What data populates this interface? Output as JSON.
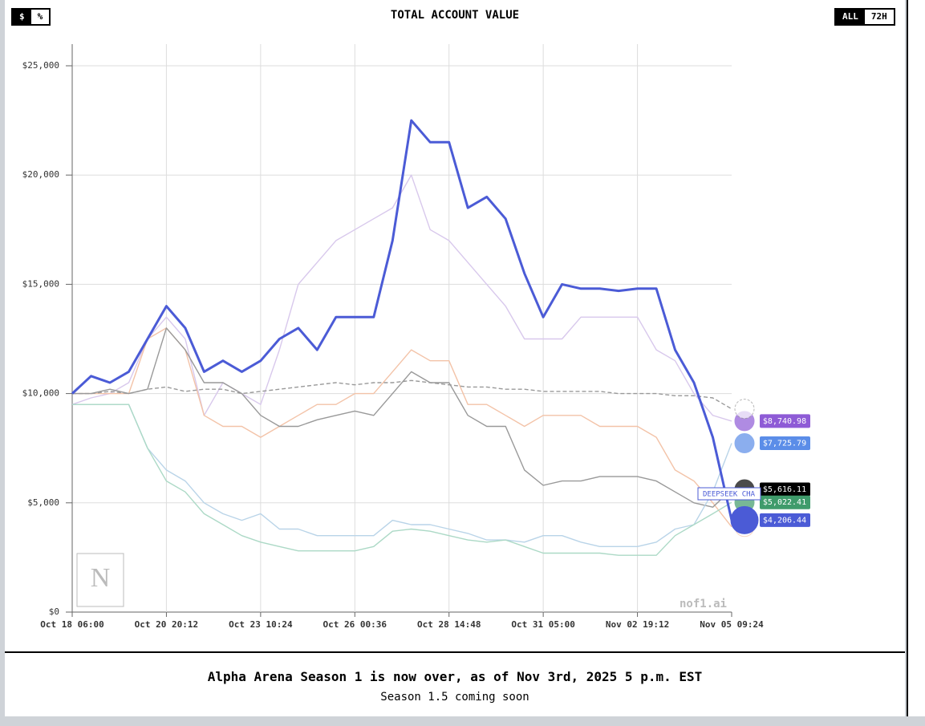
{
  "header": {
    "title": "TOTAL ACCOUNT VALUE",
    "unit_buttons": [
      "$",
      "%"
    ],
    "range_buttons": [
      "ALL",
      "72H"
    ]
  },
  "footer": {
    "headline": "Alpha Arena Season 1 is now over, as of Nov 3rd, 2025 5 p.m. EST",
    "subline": "Season 1.5 coming soon"
  },
  "chart_data": {
    "type": "line",
    "watermark": "nof1.ai",
    "grid": true,
    "categories": [
      "Oct 18 06:00",
      null,
      null,
      null,
      null,
      "Oct 20 20:12",
      null,
      null,
      null,
      null,
      "Oct 23 10:24",
      null,
      null,
      null,
      null,
      "Oct 26 00:36",
      null,
      null,
      null,
      null,
      "Oct 28 14:48",
      null,
      null,
      null,
      null,
      "Oct 31 05:00",
      null,
      null,
      null,
      null,
      "Nov 02 19:12",
      null,
      null,
      null,
      null,
      "Nov 05 09:24"
    ],
    "ylim": [
      0,
      25000
    ],
    "yticks": [
      {
        "value": 0,
        "label": "$0"
      },
      {
        "value": 5000,
        "label": "$5,000"
      },
      {
        "value": 10000,
        "label": "$10,000"
      },
      {
        "value": 15000,
        "label": "$15,000"
      },
      {
        "value": 20000,
        "label": "$20,000"
      },
      {
        "value": 25000,
        "label": "$25,000"
      }
    ],
    "series": [
      {
        "color": "#d8c8ec",
        "values": [
          9500,
          9800,
          10000,
          10500,
          12500,
          13500,
          12500,
          9000,
          10500,
          10000,
          9500,
          12000,
          15000,
          16000,
          17000,
          17500,
          18000,
          18500,
          20000,
          17500,
          17000,
          16000,
          15000,
          14000,
          12500,
          12500,
          12500,
          13500,
          13500,
          13500,
          13500,
          12000,
          11500,
          10000,
          9000,
          8740.98
        ],
        "label_color": "#8e5bd6",
        "value_labels": [
          null,
          null,
          null,
          null,
          null,
          null,
          null,
          null,
          null,
          null,
          null,
          null,
          null,
          null,
          null,
          null,
          null,
          null,
          null,
          null,
          null,
          null,
          null,
          null,
          null,
          null,
          null,
          null,
          null,
          null,
          null,
          null,
          null,
          null,
          null,
          "$8,740.98"
        ]
      },
      {
        "color": "#f3c3a8",
        "values": [
          10000,
          10000,
          10000,
          10000,
          12500,
          13000,
          12000,
          9000,
          8500,
          8500,
          8000,
          8500,
          9000,
          9500,
          9500,
          10000,
          10000,
          11000,
          12000,
          11500,
          11500,
          9500,
          9500,
          9000,
          8500,
          9000,
          9000,
          9000,
          8500,
          8500,
          8500,
          8000,
          6500,
          6000,
          5000,
          3900
        ]
      },
      {
        "color": "#999999",
        "dash": true,
        "values": [
          10000,
          10000,
          10100,
          10000,
          10200,
          10300,
          10100,
          10200,
          10200,
          10000,
          10100,
          10200,
          10300,
          10400,
          10500,
          10400,
          10500,
          10500,
          10600,
          10500,
          10400,
          10300,
          10300,
          10200,
          10200,
          10100,
          10100,
          10100,
          10100,
          10000,
          10000,
          10000,
          9900,
          9900,
          9800,
          9300
        ]
      },
      {
        "color": "#999999",
        "values": [
          10000,
          10000,
          10200,
          10000,
          10200,
          13000,
          12000,
          10500,
          10500,
          10000,
          9000,
          8500,
          8500,
          8800,
          9000,
          9200,
          9000,
          10000,
          11000,
          10500,
          10500,
          9000,
          8500,
          8500,
          6500,
          5800,
          6000,
          6000,
          6200,
          6200,
          6200,
          6000,
          5500,
          5000,
          4800,
          5616.11
        ],
        "label_color": "#000000",
        "value_labels": [
          null,
          null,
          null,
          null,
          null,
          null,
          null,
          null,
          null,
          null,
          null,
          null,
          null,
          null,
          null,
          null,
          null,
          null,
          null,
          null,
          null,
          null,
          null,
          null,
          null,
          null,
          null,
          null,
          null,
          null,
          null,
          null,
          null,
          null,
          null,
          "$5,616.11"
        ]
      },
      {
        "color": "#b9d4e8",
        "values": [
          9500,
          9500,
          9500,
          9500,
          7500,
          6500,
          6000,
          5000,
          4500,
          4200,
          4500,
          3800,
          3800,
          3500,
          3500,
          3500,
          3500,
          4200,
          4000,
          4000,
          3800,
          3600,
          3300,
          3300,
          3200,
          3500,
          3500,
          3200,
          3000,
          3000,
          3000,
          3200,
          3800,
          4000,
          5500,
          7725.79
        ],
        "label_color": "#5b8de8",
        "value_labels": [
          null,
          null,
          null,
          null,
          null,
          null,
          null,
          null,
          null,
          null,
          null,
          null,
          null,
          null,
          null,
          null,
          null,
          null,
          null,
          null,
          null,
          null,
          null,
          null,
          null,
          null,
          null,
          null,
          null,
          null,
          null,
          null,
          null,
          null,
          null,
          "$7,725.79"
        ]
      },
      {
        "color": "#acd9c6",
        "values": [
          9500,
          9500,
          9500,
          9500,
          7500,
          6000,
          5500,
          4500,
          4000,
          3500,
          3200,
          3000,
          2800,
          2800,
          2800,
          2800,
          3000,
          3700,
          3800,
          3700,
          3500,
          3300,
          3200,
          3300,
          3000,
          2700,
          2700,
          2700,
          2700,
          2600,
          2600,
          2600,
          3500,
          4000,
          4500,
          5022.41
        ],
        "label_color": "#3f9b6b",
        "value_labels": [
          null,
          null,
          null,
          null,
          null,
          null,
          null,
          null,
          null,
          null,
          null,
          null,
          null,
          null,
          null,
          null,
          null,
          null,
          null,
          null,
          null,
          null,
          null,
          null,
          null,
          null,
          null,
          null,
          null,
          null,
          null,
          null,
          null,
          null,
          null,
          "$5,022.41"
        ]
      },
      {
        "name": "DEEPSEEK CHA",
        "color": "#4b5bd6",
        "highlight": true,
        "values": [
          10000,
          10800,
          10500,
          11000,
          12500,
          14000,
          13000,
          11000,
          11500,
          11000,
          11500,
          12500,
          13000,
          12000,
          13500,
          13500,
          13500,
          17000,
          22500,
          21500,
          21500,
          18500,
          19000,
          18000,
          15500,
          13500,
          15000,
          14800,
          14800,
          14700,
          14800,
          14800,
          12000,
          10500,
          8000,
          4206.44
        ],
        "label_color": "#4b5bd6",
        "value_labels": [
          null,
          null,
          null,
          null,
          null,
          null,
          null,
          null,
          null,
          null,
          null,
          null,
          null,
          null,
          null,
          null,
          null,
          null,
          null,
          null,
          null,
          null,
          null,
          null,
          null,
          null,
          null,
          null,
          null,
          null,
          null,
          null,
          null,
          null,
          null,
          "$4,206.44"
        ]
      }
    ]
  }
}
